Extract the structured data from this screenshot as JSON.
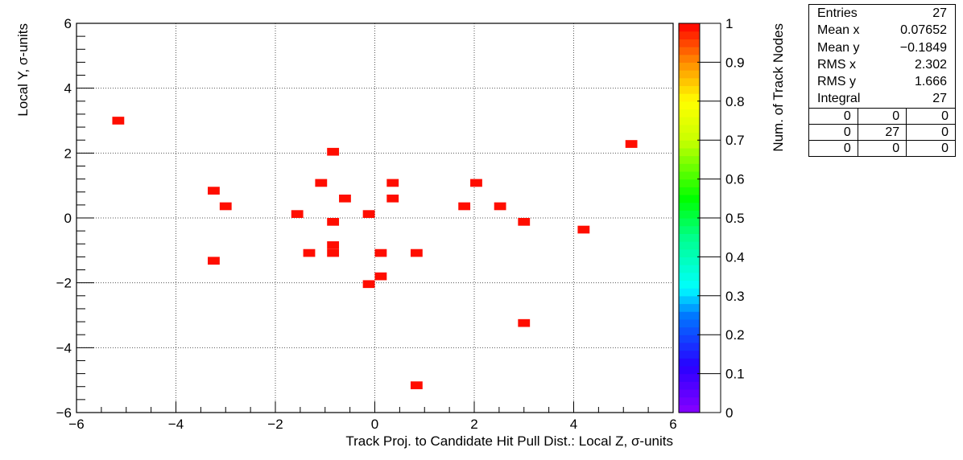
{
  "chart_data": {
    "type": "heatmap",
    "title": "",
    "xlabel": "Track Proj. to Candidate Hit Pull Dist.: Local Z, σ-units",
    "ylabel": "Local Y, σ-units",
    "zlabel": "Num. of Track Nodes",
    "xlim": [
      -6,
      6
    ],
    "ylim": [
      -6,
      6
    ],
    "zlim": [
      0,
      1
    ],
    "xticks": [
      "−6",
      "−4",
      "−2",
      "0",
      "2",
      "4",
      "6"
    ],
    "yticks": [
      "−6",
      "−4",
      "−2",
      "0",
      "2",
      "4",
      "6"
    ],
    "zticks": [
      "0",
      "0.1",
      "0.2",
      "0.3",
      "0.4",
      "0.5",
      "0.6",
      "0.7",
      "0.8",
      "0.9",
      "1"
    ],
    "grid": true,
    "bin_width": 0.24,
    "bin_height": 0.24,
    "bin_color": "#ff0d00",
    "points": [
      {
        "x": -5.16,
        "y": 3.0,
        "z": 1
      },
      {
        "x": -3.24,
        "y": 0.84,
        "z": 1
      },
      {
        "x": -3.0,
        "y": 0.36,
        "z": 1
      },
      {
        "x": -3.24,
        "y": -1.32,
        "z": 1
      },
      {
        "x": -1.56,
        "y": 0.12,
        "z": 1
      },
      {
        "x": -1.32,
        "y": -1.08,
        "z": 1
      },
      {
        "x": -1.08,
        "y": 1.08,
        "z": 1
      },
      {
        "x": -0.84,
        "y": 2.04,
        "z": 1
      },
      {
        "x": -0.84,
        "y": -0.12,
        "z": 1
      },
      {
        "x": -0.84,
        "y": -0.84,
        "z": 1
      },
      {
        "x": -0.84,
        "y": -1.08,
        "z": 1
      },
      {
        "x": -0.6,
        "y": 0.6,
        "z": 1
      },
      {
        "x": -0.12,
        "y": 0.12,
        "z": 1
      },
      {
        "x": -0.12,
        "y": -2.04,
        "z": 1
      },
      {
        "x": 0.12,
        "y": -1.08,
        "z": 1
      },
      {
        "x": 0.12,
        "y": -1.8,
        "z": 1
      },
      {
        "x": 0.36,
        "y": 1.08,
        "z": 1
      },
      {
        "x": 0.36,
        "y": 0.6,
        "z": 1
      },
      {
        "x": 0.84,
        "y": -1.08,
        "z": 1
      },
      {
        "x": 0.84,
        "y": -5.16,
        "z": 1
      },
      {
        "x": 1.8,
        "y": 0.36,
        "z": 1
      },
      {
        "x": 2.04,
        "y": 1.08,
        "z": 1
      },
      {
        "x": 2.52,
        "y": 0.36,
        "z": 1
      },
      {
        "x": 3.0,
        "y": -0.12,
        "z": 1
      },
      {
        "x": 3.0,
        "y": -3.24,
        "z": 1
      },
      {
        "x": 4.2,
        "y": -0.36,
        "z": 1
      },
      {
        "x": 5.16,
        "y": 2.28,
        "z": 1
      }
    ]
  },
  "stats": {
    "entries_label": "Entries",
    "entries": "27",
    "meanx_label": "Mean x",
    "meanx": "0.07652",
    "meany_label": "Mean y",
    "meany": "−0.1849",
    "rmsx_label": "RMS x",
    "rmsx": "2.302",
    "rmsy_label": "RMS y",
    "rmsy": "1.666",
    "integral_label": "Integral",
    "integral": "27",
    "grid": [
      [
        "0",
        "0",
        "0"
      ],
      [
        "0",
        "27",
        "0"
      ],
      [
        "0",
        "0",
        "0"
      ]
    ]
  }
}
